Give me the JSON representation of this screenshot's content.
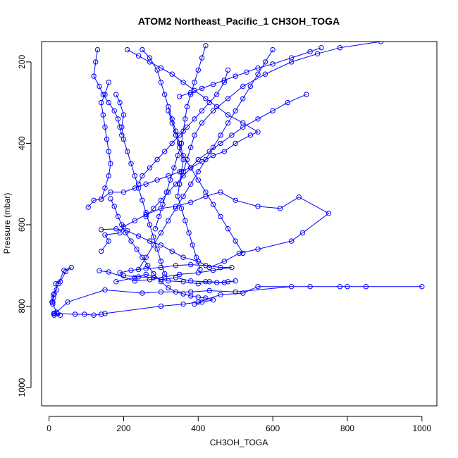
{
  "chart_data": {
    "type": "scatter",
    "title": "ATOM2 Northeast_Pacific_1 CH3OH_TOGA",
    "xlabel": "CH3OH_TOGA",
    "ylabel": "Pressure (mbar)",
    "xlim": [
      -20,
      1040
    ],
    "ylim": [
      1045,
      150
    ],
    "y_reversed": true,
    "x_ticks": [
      0,
      200,
      400,
      600,
      800,
      1000
    ],
    "y_ticks": [
      200,
      400,
      600,
      800,
      1000
    ],
    "grid": false,
    "legend": "none",
    "series_color": "#0000ff",
    "marker": "open-circle",
    "connect_points": true,
    "series": [
      {
        "points": [
          [
            12,
            780
          ],
          [
            10,
            790
          ],
          [
            14,
            770
          ],
          [
            20,
            760
          ],
          [
            18,
            745
          ],
          [
            30,
            740
          ],
          [
            45,
            715
          ],
          [
            60,
            705
          ],
          [
            40,
            712
          ],
          [
            25,
            745
          ],
          [
            12,
            772
          ],
          [
            8,
            790
          ],
          [
            10,
            795
          ],
          [
            22,
            818
          ],
          [
            30,
            822
          ],
          [
            14,
            822
          ],
          [
            12,
            818
          ],
          [
            70,
            820
          ],
          [
            95,
            820
          ],
          [
            120,
            822
          ],
          [
            140,
            820
          ],
          [
            150,
            818
          ],
          [
            300,
            800
          ],
          [
            360,
            795
          ],
          [
            400,
            790
          ],
          [
            460,
            772
          ],
          [
            520,
            768
          ],
          [
            560,
            752
          ],
          [
            700,
            752
          ],
          [
            780,
            752
          ],
          [
            850,
            752
          ],
          [
            1000,
            752
          ],
          [
            800,
            752
          ],
          [
            650,
            752
          ],
          [
            500,
            765
          ],
          [
            430,
            762
          ],
          [
            380,
            765
          ],
          [
            300,
            765
          ],
          [
            250,
            768
          ],
          [
            150,
            760
          ],
          [
            50,
            790
          ],
          [
            20,
            815
          ],
          [
            15,
            818
          ]
        ]
      },
      {
        "points": [
          [
            180,
            740
          ],
          [
            230,
            730
          ],
          [
            260,
            722
          ],
          [
            300,
            735
          ],
          [
            340,
            730
          ],
          [
            380,
            738
          ],
          [
            420,
            740
          ],
          [
            450,
            742
          ],
          [
            480,
            740
          ],
          [
            500,
            738
          ],
          [
            470,
            742
          ],
          [
            430,
            740
          ],
          [
            400,
            745
          ],
          [
            360,
            740
          ],
          [
            320,
            738
          ],
          [
            280,
            730
          ],
          [
            240,
            728
          ],
          [
            200,
            725
          ],
          [
            190,
            718
          ],
          [
            220,
            712
          ],
          [
            260,
            708
          ],
          [
            300,
            705
          ],
          [
            340,
            700
          ],
          [
            380,
            698
          ],
          [
            420,
            700
          ],
          [
            460,
            705
          ],
          [
            490,
            705
          ],
          [
            440,
            712
          ],
          [
            400,
            718
          ],
          [
            350,
            722
          ],
          [
            310,
            728
          ],
          [
            270,
            735
          ],
          [
            230,
            738
          ],
          [
            160,
            716
          ],
          [
            135,
            713
          ]
        ]
      },
      {
        "points": [
          [
            140,
            665
          ],
          [
            160,
            640
          ],
          [
            150,
            625
          ],
          [
            190,
            620
          ],
          [
            200,
            605
          ],
          [
            230,
            590
          ],
          [
            260,
            575
          ],
          [
            300,
            560
          ],
          [
            340,
            555
          ],
          [
            380,
            545
          ],
          [
            420,
            530
          ],
          [
            460,
            520
          ],
          [
            500,
            540
          ],
          [
            560,
            555
          ],
          [
            620,
            560
          ],
          [
            670,
            532
          ],
          [
            750,
            572
          ],
          [
            680,
            620
          ],
          [
            650,
            640
          ],
          [
            560,
            660
          ],
          [
            510,
            670
          ],
          [
            470,
            690
          ],
          [
            430,
            705
          ],
          [
            400,
            690
          ],
          [
            360,
            680
          ],
          [
            330,
            665
          ],
          [
            300,
            650
          ],
          [
            270,
            640
          ],
          [
            240,
            628
          ],
          [
            210,
            615
          ],
          [
            180,
            610
          ],
          [
            140,
            612
          ]
        ]
      },
      {
        "points": [
          [
            105,
            557
          ],
          [
            120,
            540
          ],
          [
            140,
            537
          ],
          [
            165,
            520
          ],
          [
            200,
            520
          ],
          [
            230,
            510
          ],
          [
            260,
            500
          ],
          [
            290,
            490
          ],
          [
            320,
            480
          ],
          [
            350,
            470
          ],
          [
            380,
            460
          ],
          [
            410,
            445
          ],
          [
            440,
            430
          ],
          [
            470,
            420
          ],
          [
            500,
            400
          ],
          [
            540,
            380
          ],
          [
            560,
            372
          ],
          [
            520,
            350
          ],
          [
            480,
            330
          ],
          [
            450,
            310
          ],
          [
            420,
            290
          ],
          [
            390,
            270
          ],
          [
            360,
            250
          ],
          [
            330,
            230
          ],
          [
            300,
            215
          ],
          [
            270,
            200
          ],
          [
            240,
            185
          ],
          [
            210,
            170
          ]
        ]
      },
      {
        "points": [
          [
            160,
            250
          ],
          [
            150,
            280
          ],
          [
            140,
            300
          ],
          [
            145,
            330
          ],
          [
            150,
            360
          ],
          [
            155,
            390
          ],
          [
            160,
            420
          ],
          [
            165,
            450
          ],
          [
            160,
            480
          ],
          [
            150,
            510
          ],
          [
            140,
            537
          ]
        ]
      },
      {
        "points": [
          [
            180,
            280
          ],
          [
            190,
            300
          ],
          [
            200,
            330
          ],
          [
            195,
            360
          ],
          [
            200,
            390
          ],
          [
            210,
            420
          ],
          [
            220,
            450
          ],
          [
            230,
            480
          ],
          [
            240,
            510
          ],
          [
            250,
            540
          ],
          [
            260,
            570
          ],
          [
            270,
            600
          ],
          [
            280,
            630
          ],
          [
            290,
            660
          ],
          [
            300,
            690
          ],
          [
            310,
            720
          ]
        ]
      },
      {
        "points": [
          [
            320,
            320
          ],
          [
            330,
            350
          ],
          [
            340,
            380
          ],
          [
            350,
            410
          ],
          [
            360,
            440
          ],
          [
            355,
            470
          ],
          [
            350,
            500
          ],
          [
            345,
            530
          ],
          [
            355,
            560
          ],
          [
            365,
            590
          ],
          [
            375,
            620
          ],
          [
            385,
            650
          ],
          [
            395,
            680
          ],
          [
            405,
            710
          ]
        ]
      },
      {
        "points": [
          [
            250,
            170
          ],
          [
            270,
            190
          ],
          [
            290,
            220
          ],
          [
            300,
            250
          ],
          [
            310,
            280
          ],
          [
            320,
            310
          ],
          [
            330,
            340
          ],
          [
            340,
            370
          ],
          [
            350,
            400
          ],
          [
            360,
            430
          ],
          [
            380,
            460
          ],
          [
            400,
            490
          ],
          [
            420,
            520
          ],
          [
            440,
            550
          ],
          [
            460,
            580
          ],
          [
            480,
            610
          ],
          [
            500,
            640
          ],
          [
            520,
            670
          ]
        ]
      },
      {
        "points": [
          [
            600,
            170
          ],
          [
            580,
            200
          ],
          [
            560,
            230
          ],
          [
            540,
            260
          ],
          [
            520,
            290
          ],
          [
            500,
            320
          ],
          [
            480,
            350
          ],
          [
            460,
            380
          ],
          [
            440,
            410
          ],
          [
            420,
            440
          ],
          [
            400,
            470
          ],
          [
            380,
            500
          ],
          [
            360,
            530
          ],
          [
            340,
            560
          ],
          [
            320,
            590
          ],
          [
            300,
            620
          ],
          [
            280,
            650
          ],
          [
            260,
            680
          ],
          [
            240,
            710
          ]
        ]
      },
      {
        "points": [
          [
            890,
            150
          ],
          [
            780,
            165
          ],
          [
            720,
            180
          ],
          [
            650,
            200
          ],
          [
            580,
            230
          ],
          [
            520,
            260
          ],
          [
            480,
            290
          ],
          [
            440,
            320
          ],
          [
            410,
            350
          ],
          [
            390,
            380
          ],
          [
            380,
            410
          ],
          [
            370,
            440
          ],
          [
            360,
            470
          ],
          [
            350,
            500
          ]
        ]
      },
      {
        "points": [
          [
            130,
            170
          ],
          [
            125,
            200
          ],
          [
            120,
            235
          ],
          [
            135,
            260
          ],
          [
            145,
            280
          ],
          [
            160,
            300
          ],
          [
            175,
            320
          ],
          [
            185,
            340
          ],
          [
            190,
            360
          ],
          [
            195,
            380
          ]
        ]
      },
      {
        "points": [
          [
            420,
            160
          ],
          [
            410,
            190
          ],
          [
            400,
            220
          ],
          [
            390,
            250
          ],
          [
            380,
            280
          ],
          [
            370,
            310
          ],
          [
            365,
            340
          ],
          [
            360,
            370
          ],
          [
            355,
            400
          ],
          [
            345,
            430
          ],
          [
            335,
            460
          ],
          [
            325,
            490
          ],
          [
            315,
            520
          ],
          [
            305,
            550
          ],
          [
            295,
            580
          ],
          [
            285,
            610
          ]
        ]
      },
      {
        "points": [
          [
            690,
            280
          ],
          [
            640,
            300
          ],
          [
            600,
            320
          ],
          [
            560,
            340
          ],
          [
            520,
            360
          ],
          [
            490,
            380
          ],
          [
            460,
            400
          ],
          [
            430,
            420
          ],
          [
            400,
            440
          ],
          [
            380,
            460
          ],
          [
            360,
            480
          ],
          [
            340,
            500
          ],
          [
            320,
            520
          ],
          [
            300,
            540
          ],
          [
            280,
            560
          ],
          [
            260,
            580
          ]
        ]
      },
      {
        "points": [
          [
            480,
            220
          ],
          [
            470,
            250
          ],
          [
            450,
            280
          ],
          [
            430,
            300
          ],
          [
            410,
            320
          ],
          [
            390,
            340
          ],
          [
            370,
            360
          ],
          [
            350,
            380
          ],
          [
            330,
            400
          ],
          [
            310,
            420
          ],
          [
            290,
            440
          ],
          [
            270,
            460
          ],
          [
            250,
            480
          ],
          [
            240,
            500
          ]
        ]
      },
      {
        "points": [
          [
            730,
            165
          ],
          [
            700,
            175
          ],
          [
            650,
            190
          ],
          [
            600,
            205
          ],
          [
            560,
            215
          ],
          [
            530,
            225
          ],
          [
            500,
            235
          ],
          [
            470,
            245
          ],
          [
            440,
            255
          ],
          [
            410,
            265
          ],
          [
            380,
            275
          ],
          [
            350,
            285
          ]
        ]
      },
      {
        "points": [
          [
            165,
            536
          ],
          [
            175,
            555
          ],
          [
            185,
            580
          ],
          [
            195,
            600
          ],
          [
            205,
            620
          ],
          [
            220,
            640
          ],
          [
            235,
            660
          ],
          [
            250,
            680
          ],
          [
            265,
            700
          ],
          [
            280,
            720
          ],
          [
            300,
            740
          ],
          [
            320,
            755
          ],
          [
            340,
            765
          ],
          [
            360,
            770
          ],
          [
            380,
            775
          ],
          [
            400,
            778
          ],
          [
            420,
            780
          ],
          [
            440,
            785
          ],
          [
            410,
            790
          ],
          [
            390,
            795
          ]
        ]
      }
    ]
  }
}
